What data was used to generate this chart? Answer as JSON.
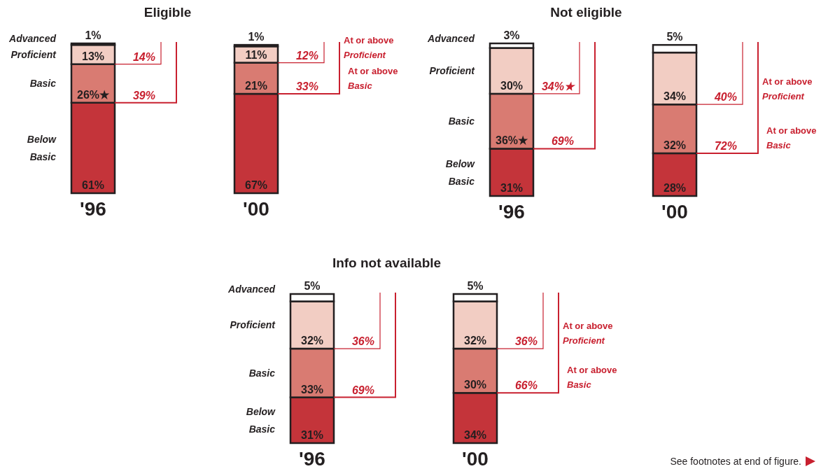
{
  "chart_data": [
    {
      "type": "bar",
      "title": "Eligible",
      "categories": [
        "'96",
        "'00"
      ],
      "stacked": true,
      "legend": false,
      "series": [
        {
          "name": "Below Basic",
          "color": "#c4343a",
          "values": [
            61,
            67
          ],
          "value_labels": [
            "61%",
            "67%"
          ]
        },
        {
          "name": "Basic",
          "color": "#d97b72",
          "values": [
            26,
            21
          ],
          "value_labels": [
            "26%★",
            "21%"
          ]
        },
        {
          "name": "Proficient",
          "color": "#f2cdc3",
          "values": [
            13,
            11
          ],
          "value_labels": [
            "13%",
            "11%"
          ]
        },
        {
          "name": "Advanced",
          "color": "#ffffff",
          "values": [
            1,
            1
          ],
          "value_labels": [
            "1%",
            "1%"
          ]
        }
      ],
      "annotations": [
        "14%",
        "39%",
        "12%",
        "At or above Proficient",
        "33%",
        "At or above Basic"
      ]
    },
    {
      "type": "bar",
      "title": "Not eligible",
      "categories": [
        "'96",
        "'00"
      ],
      "stacked": true,
      "legend": false,
      "series": [
        {
          "name": "Below Basic",
          "color": "#c4343a",
          "values": [
            31,
            28
          ],
          "value_labels": [
            "31%",
            "28%"
          ]
        },
        {
          "name": "Basic",
          "color": "#d97b72",
          "values": [
            36,
            32
          ],
          "value_labels": [
            "36%★",
            "32%"
          ]
        },
        {
          "name": "Proficient",
          "color": "#f2cdc3",
          "values": [
            30,
            34
          ],
          "value_labels": [
            "30%",
            "34%"
          ]
        },
        {
          "name": "Advanced",
          "color": "#ffffff",
          "values": [
            3,
            5
          ],
          "value_labels": [
            "3%",
            "5%"
          ]
        }
      ],
      "annotations": [
        "34%★",
        "69%",
        "40%",
        "At or above Proficient",
        "72%",
        "At or above Basic"
      ]
    },
    {
      "type": "bar",
      "title": "Info not available",
      "categories": [
        "'96",
        "'00"
      ],
      "stacked": true,
      "legend": false,
      "series": [
        {
          "name": "Below Basic",
          "color": "#c4343a",
          "values": [
            31,
            34
          ],
          "value_labels": [
            "31%",
            "34%"
          ]
        },
        {
          "name": "Basic",
          "color": "#d97b72",
          "values": [
            33,
            30
          ],
          "value_labels": [
            "33%",
            "30%"
          ]
        },
        {
          "name": "Proficient",
          "color": "#f2cdc3",
          "values": [
            32,
            32
          ],
          "value_labels": [
            "32%",
            "32%"
          ]
        },
        {
          "name": "Advanced",
          "color": "#ffffff",
          "values": [
            5,
            5
          ],
          "value_labels": [
            "5%",
            "5%"
          ]
        }
      ],
      "annotations": [
        "36%",
        "69%",
        "36%",
        "At or above Proficient",
        "66%",
        "At or above Basic",
        "See footnotes at end of figure."
      ]
    }
  ]
}
